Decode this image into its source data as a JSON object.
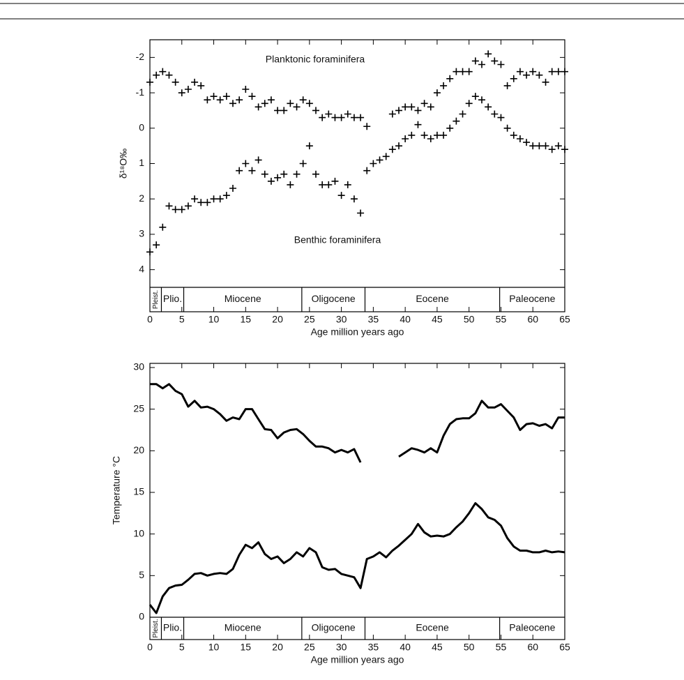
{
  "chart_data": [
    {
      "type": "scatter",
      "ylabel": "δ¹⁸O‰",
      "xlabel": "Age million years ago",
      "x": [
        0,
        1,
        2,
        3,
        4,
        5,
        6,
        7,
        8,
        9,
        10,
        11,
        12,
        13,
        14,
        15,
        16,
        17,
        18,
        19,
        20,
        21,
        22,
        23,
        24,
        25,
        26,
        27,
        28,
        29,
        30,
        31,
        32,
        33,
        34,
        35,
        36,
        37,
        38,
        39,
        40,
        41,
        42,
        43,
        44,
        45,
        46,
        47,
        48,
        49,
        50,
        51,
        52,
        53,
        54,
        55,
        56,
        57,
        58,
        59,
        60,
        61,
        62,
        63,
        64,
        65
      ],
      "series": [
        {
          "name": "Planktonic foraminifera",
          "color": "#000000",
          "values": [
            -1.3,
            -1.5,
            -1.6,
            -1.5,
            -1.3,
            -1.0,
            -1.1,
            -1.3,
            -1.2,
            -0.8,
            -0.9,
            -0.8,
            -0.9,
            -0.7,
            -0.8,
            -1.1,
            -0.9,
            -0.6,
            -0.7,
            -0.8,
            -0.5,
            -0.5,
            -0.7,
            -0.6,
            -0.8,
            -0.7,
            -0.5,
            -0.3,
            -0.4,
            -0.3,
            -0.3,
            -0.4,
            -0.3,
            -0.3,
            -0.05,
            null,
            null,
            null,
            -0.4,
            -0.5,
            -0.6,
            -0.6,
            -0.5,
            -0.7,
            -0.6,
            -1.0,
            -1.2,
            -1.4,
            -1.6,
            -1.6,
            -1.6,
            -1.9,
            -1.8,
            -2.1,
            -1.9,
            -1.8,
            -1.2,
            -1.4,
            -1.6,
            -1.5,
            -1.6,
            -1.5,
            -1.3,
            -1.6,
            -1.6,
            -1.6
          ]
        },
        {
          "name": "Benthic foraminifera",
          "color": "#000000",
          "values": [
            3.5,
            3.3,
            2.8,
            2.2,
            2.3,
            2.3,
            2.2,
            2.0,
            2.1,
            2.1,
            2.0,
            2.0,
            1.9,
            1.7,
            1.2,
            1.0,
            1.2,
            0.9,
            1.3,
            1.5,
            1.4,
            1.3,
            1.6,
            1.3,
            1.0,
            0.5,
            1.3,
            1.6,
            1.6,
            1.5,
            1.9,
            1.6,
            2.0,
            2.4,
            1.2,
            1.0,
            0.9,
            0.8,
            0.6,
            0.5,
            0.3,
            0.2,
            -0.1,
            0.2,
            0.3,
            0.2,
            0.2,
            0.0,
            -0.2,
            -0.4,
            -0.7,
            -0.9,
            -0.8,
            -0.6,
            -0.4,
            -0.3,
            0.0,
            0.2,
            0.3,
            0.4,
            0.5,
            0.5,
            0.5,
            0.6,
            0.5,
            0.6
          ]
        }
      ],
      "xlim": [
        0,
        65
      ],
      "xticks": [
        0,
        5,
        10,
        15,
        20,
        25,
        30,
        35,
        40,
        45,
        50,
        55,
        60,
        65
      ],
      "ylim": [
        4.5,
        -2.5
      ],
      "yticks": [
        -2,
        -1,
        0,
        1,
        2,
        3,
        4
      ],
      "epochs": {
        "labels": [
          "Pleist.",
          "Plio.",
          "Miocene",
          "Oligocene",
          "Eocene",
          "Paleocene"
        ],
        "bounds": [
          0,
          1.8,
          5.3,
          23.8,
          33.7,
          54.8,
          65
        ]
      }
    },
    {
      "type": "line",
      "ylabel": "Temperature °C",
      "xlabel": "Age million years ago",
      "x": [
        0,
        1,
        2,
        3,
        4,
        5,
        6,
        7,
        8,
        9,
        10,
        11,
        12,
        13,
        14,
        15,
        16,
        17,
        18,
        19,
        20,
        21,
        22,
        23,
        24,
        25,
        26,
        27,
        28,
        29,
        30,
        31,
        32,
        33,
        34,
        35,
        36,
        37,
        38,
        39,
        40,
        41,
        42,
        43,
        44,
        45,
        46,
        47,
        48,
        49,
        50,
        51,
        52,
        53,
        54,
        55,
        56,
        57,
        58,
        59,
        60,
        61,
        62,
        63,
        64,
        65
      ],
      "series": [
        {
          "color": "#000000",
          "values": [
            28,
            28,
            27.5,
            28,
            27.2,
            26.8,
            25.3,
            26,
            25.2,
            25.3,
            25,
            24.4,
            23.6,
            24,
            23.8,
            25,
            25,
            23.8,
            22.6,
            22.5,
            21.5,
            22.2,
            22.5,
            22.6,
            22,
            21.2,
            20.5,
            20.5,
            20.3,
            19.8,
            20.1,
            19.8,
            20.2,
            18.6,
            null,
            null,
            null,
            null,
            null,
            19.3,
            19.8,
            20.3,
            20.1,
            19.8,
            20.3,
            19.8,
            21.8,
            23.2,
            23.8,
            23.9,
            23.9,
            24.5,
            26,
            25.2,
            25.2,
            25.6,
            24.8,
            24,
            22.5,
            23.2,
            23.3,
            23,
            23.2,
            22.7,
            24,
            24
          ]
        },
        {
          "color": "#000000",
          "values": [
            1.5,
            0.5,
            2.5,
            3.5,
            3.8,
            3.9,
            4.5,
            5.2,
            5.3,
            5.0,
            5.2,
            5.3,
            5.2,
            5.8,
            7.5,
            8.7,
            8.3,
            9.0,
            7.6,
            7.0,
            7.3,
            6.5,
            7.0,
            7.8,
            7.3,
            8.3,
            7.8,
            6.0,
            5.7,
            5.8,
            5.2,
            5.0,
            4.8,
            3.5,
            7.0,
            7.3,
            7.8,
            7.2,
            8.0,
            8.6,
            9.3,
            10.0,
            11.2,
            10.2,
            9.7,
            9.8,
            9.7,
            10.0,
            10.8,
            11.5,
            12.5,
            13.7,
            13.0,
            12.0,
            11.7,
            11.0,
            9.5,
            8.5,
            8.0,
            8.0,
            7.8,
            7.8,
            8.0,
            7.8,
            7.9,
            7.8
          ]
        }
      ],
      "xlim": [
        0,
        65
      ],
      "xticks": [
        0,
        5,
        10,
        15,
        20,
        25,
        30,
        35,
        40,
        45,
        50,
        55,
        60,
        65
      ],
      "ylim": [
        0,
        30.5
      ],
      "yticks": [
        0,
        5,
        10,
        15,
        20,
        25,
        30
      ],
      "epochs": {
        "labels": [
          "Pleist.",
          "Plio.",
          "Miocene",
          "Oligocene",
          "Eocene",
          "Paleocene"
        ],
        "bounds": [
          0,
          1.8,
          5.3,
          23.8,
          33.7,
          54.8,
          65
        ]
      }
    }
  ]
}
